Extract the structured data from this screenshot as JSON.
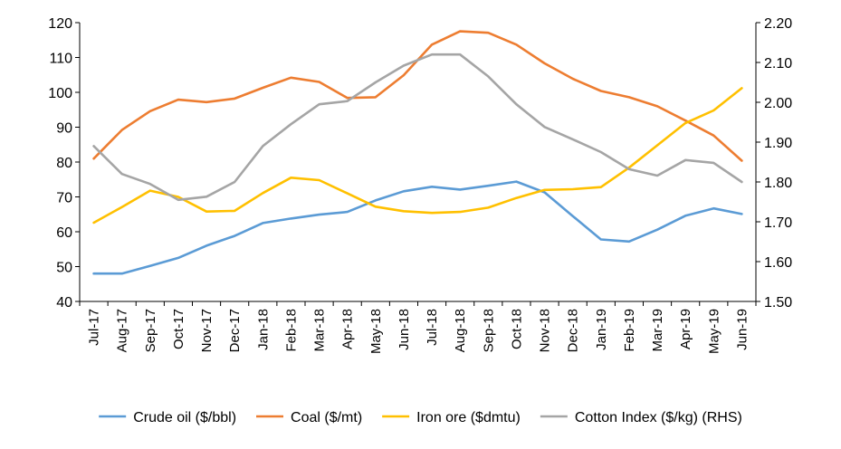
{
  "chart_data": {
    "type": "line",
    "title": "",
    "xlabel": "",
    "ylabel": "",
    "y2label": "",
    "categories": [
      "Jul-17",
      "Aug-17",
      "Sep-17",
      "Oct-17",
      "Nov-17",
      "Dec-17",
      "Jan-18",
      "Feb-18",
      "Mar-18",
      "Apr-18",
      "May-18",
      "Jun-18",
      "Jul-18",
      "Aug-18",
      "Sep-18",
      "Oct-18",
      "Nov-18",
      "Dec-18",
      "Jan-19",
      "Feb-19",
      "Mar-19",
      "Apr-19",
      "May-19",
      "Jun-19"
    ],
    "ylim": [
      40,
      120
    ],
    "yticks": [
      40,
      50,
      60,
      70,
      80,
      90,
      100,
      110,
      120
    ],
    "y2lim": [
      1.5,
      2.2
    ],
    "y2ticks": [
      "1.50",
      "1.60",
      "1.70",
      "1.80",
      "1.90",
      "2.00",
      "2.10",
      "2.20"
    ],
    "grid": false,
    "legend_position": "bottom",
    "series": [
      {
        "name": "Crude oil ($/bbl)",
        "axis": "left",
        "color": "#5B9BD5",
        "values": [
          48.0,
          48.0,
          50.2,
          52.5,
          56.0,
          58.8,
          62.5,
          63.8,
          64.9,
          65.7,
          69.0,
          71.6,
          72.9,
          72.1,
          73.2,
          74.4,
          71.3,
          64.5,
          57.8,
          57.2,
          60.6,
          64.6,
          66.7,
          65.1
        ]
      },
      {
        "name": "Coal ($/mt)",
        "axis": "left",
        "color": "#ED7D31",
        "values": [
          81.0,
          89.2,
          94.6,
          97.9,
          97.2,
          98.2,
          101.3,
          104.2,
          103.0,
          98.4,
          98.6,
          104.9,
          113.7,
          117.5,
          117.1,
          113.7,
          108.3,
          103.9,
          100.4,
          98.6,
          96.0,
          91.9,
          87.6,
          80.4
        ]
      },
      {
        "name": "Iron ore ($dmtu)",
        "axis": "left",
        "color": "#FFC000",
        "values": [
          62.6,
          67.1,
          71.8,
          70.0,
          65.8,
          66.0,
          71.1,
          75.5,
          74.8,
          71.0,
          67.2,
          65.9,
          65.4,
          65.7,
          66.9,
          69.7,
          72.0,
          72.2,
          72.8,
          78.4,
          84.8,
          91.2,
          94.8,
          101.2
        ]
      },
      {
        "name": "Cotton Index ($/kg) (RHS)",
        "axis": "right",
        "color": "#A5A5A5",
        "values": [
          1.89,
          1.82,
          1.795,
          1.755,
          1.763,
          1.8,
          1.89,
          1.945,
          1.995,
          2.003,
          2.05,
          2.092,
          2.12,
          2.12,
          2.065,
          1.995,
          1.938,
          1.907,
          1.875,
          1.832,
          1.816,
          1.855,
          1.848,
          1.8
        ]
      }
    ]
  }
}
